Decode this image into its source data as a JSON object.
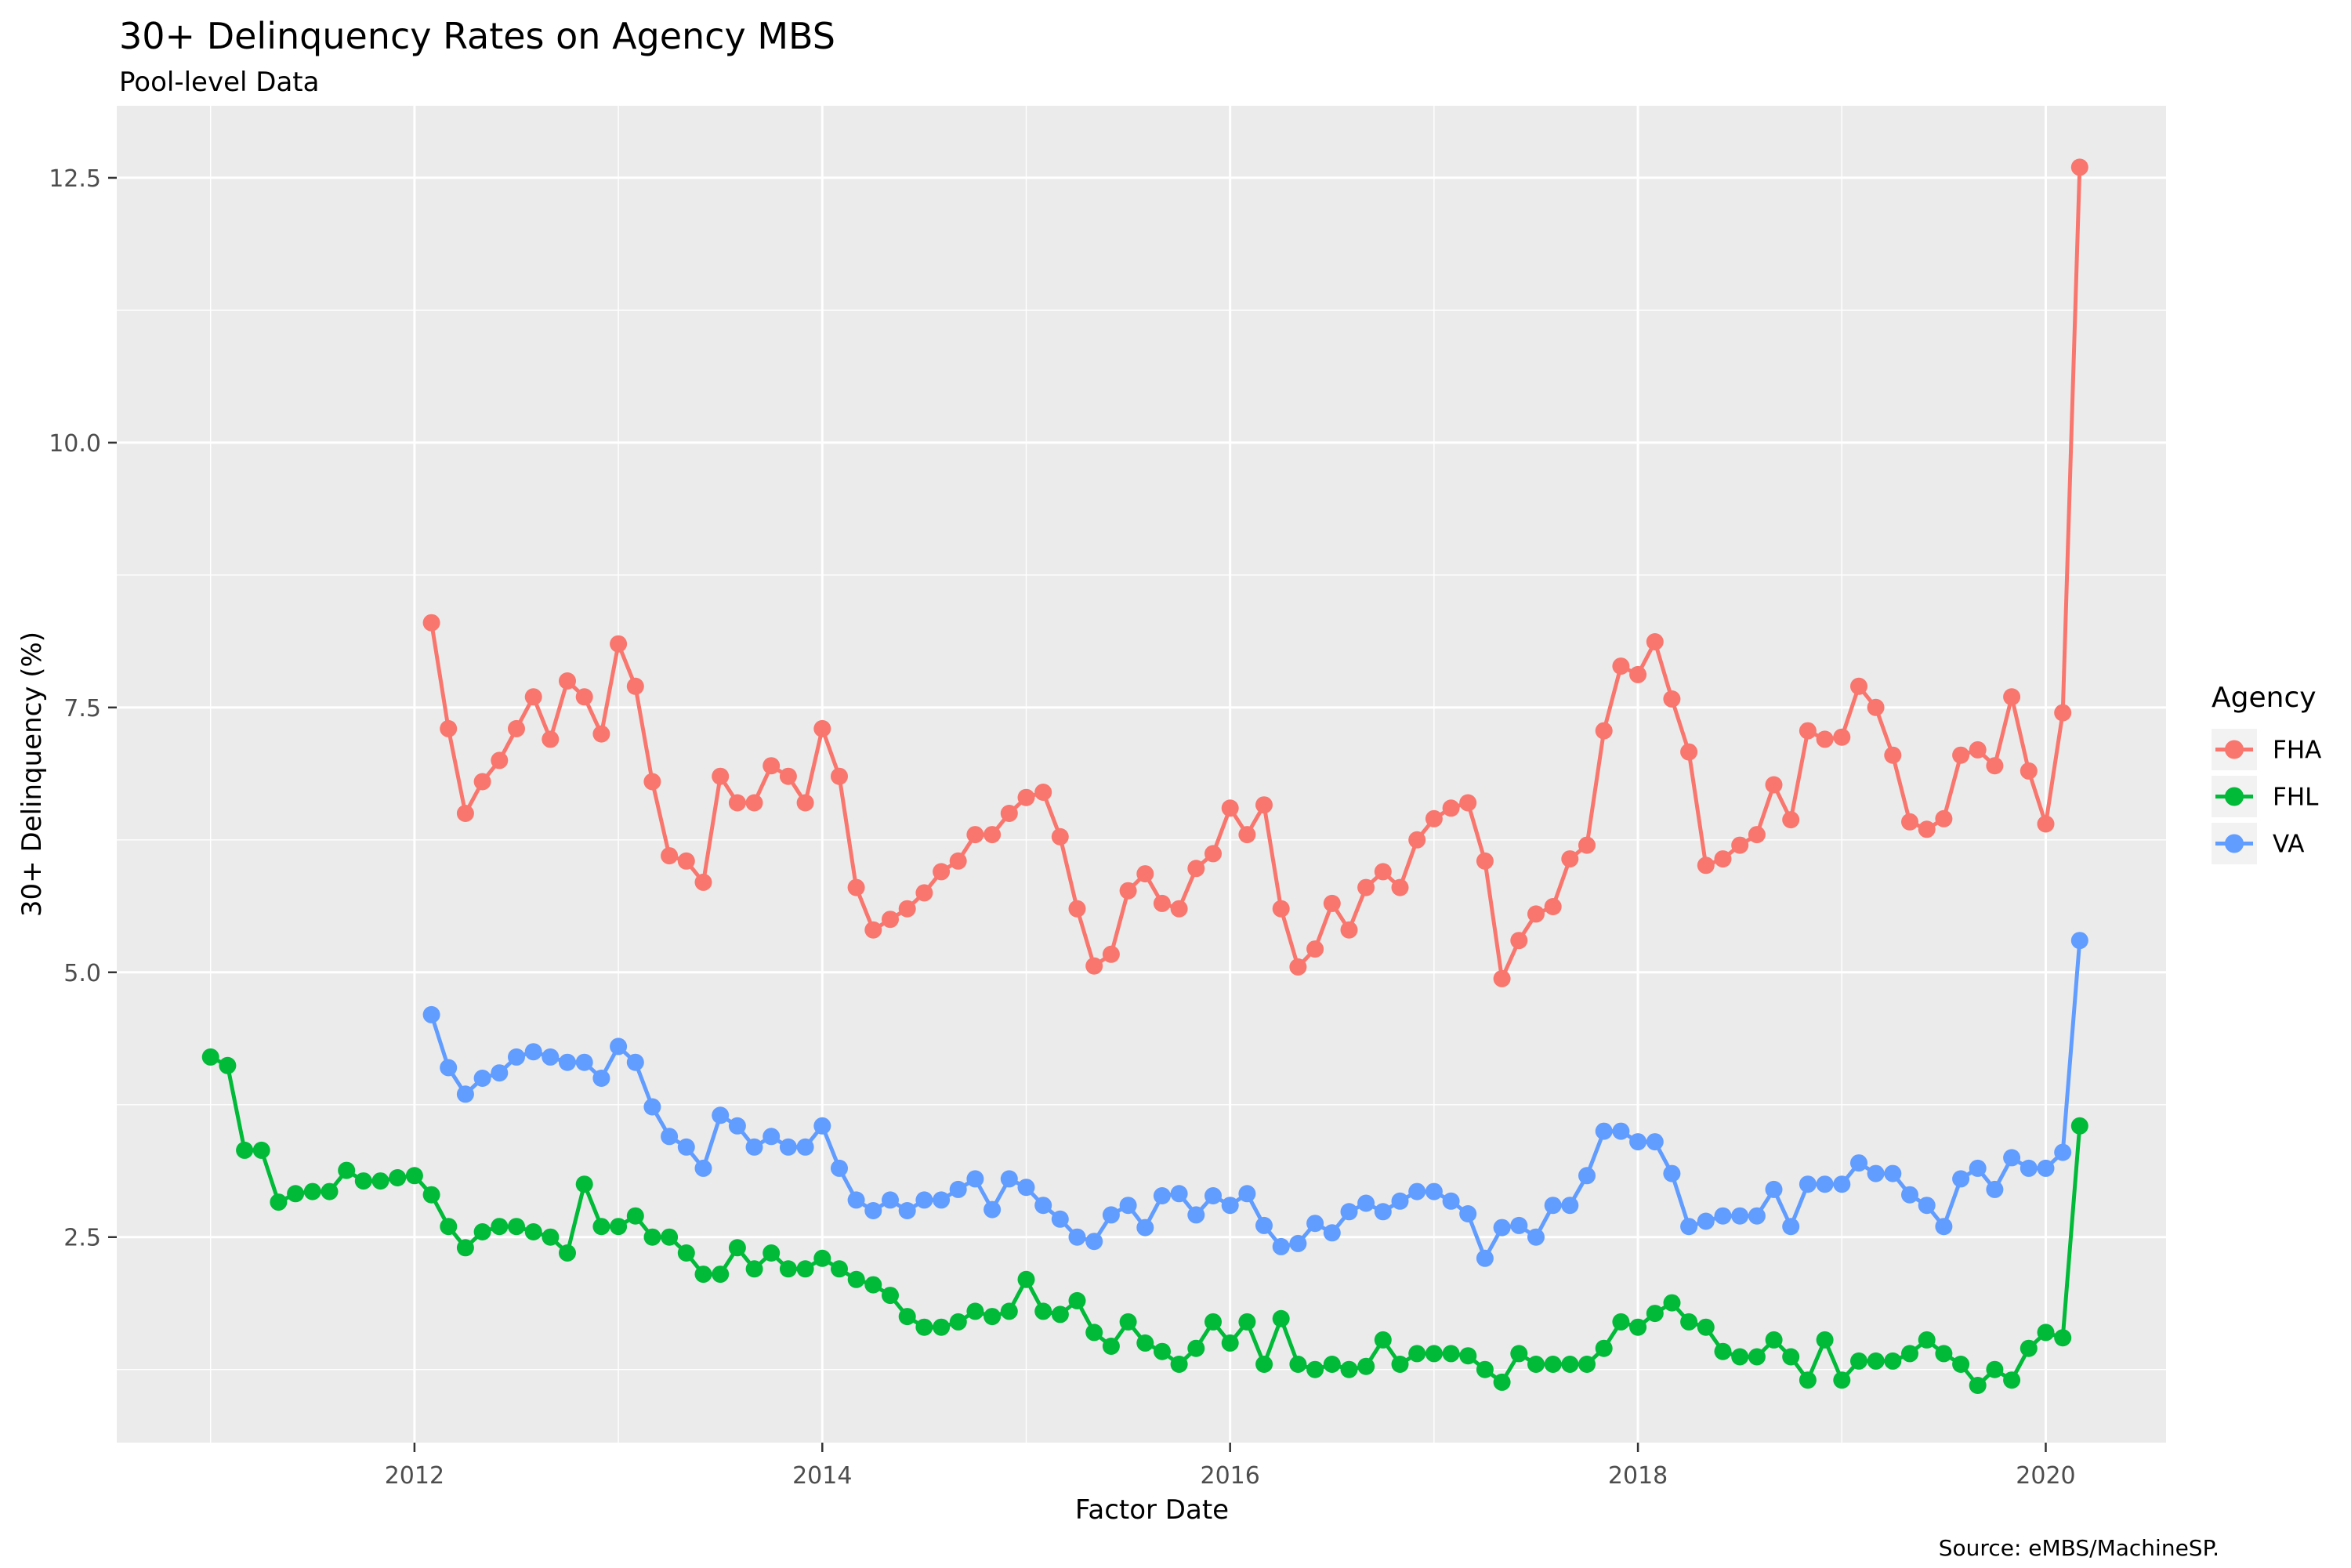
{
  "page": {
    "background": "#FFFFFF",
    "panel_background": "#EBEBEB",
    "gridline_color": "#FFFFFF",
    "tick_mark_color": "#333333",
    "tick_label_color": "#4D4D4D",
    "legend_key_background": "#F2F2F2"
  },
  "chart_data": {
    "type": "line",
    "title": "30+ Delinquency Rates on Agency MBS",
    "subtitle": "Pool-level Data",
    "xlabel": "Factor Date",
    "ylabel": "30+ Delinquency (%)",
    "caption": "Source: eMBS/MachineSP.",
    "legend_title": "Agency",
    "legend_position": "right",
    "grid": true,
    "x_unit": "year",
    "points_per_year": 12,
    "x_major_ticks": [
      2012,
      2014,
      2016,
      2018,
      2020
    ],
    "x_minor_gridlines": [
      2011,
      2013,
      2015,
      2017,
      2019
    ],
    "y_major_ticks": [
      2.5,
      5.0,
      7.5,
      10.0,
      12.5
    ],
    "y_minor_gridlines": [
      1.25,
      3.75,
      6.25,
      8.75,
      11.25
    ],
    "x_tick_labels": [
      "2012",
      "2014",
      "2016",
      "2018",
      "2020"
    ],
    "y_tick_labels": [
      "2.5",
      "5.0",
      "7.5",
      "10.0",
      "12.5"
    ],
    "xlim": [
      2010.54,
      2020.59
    ],
    "ylim": [
      0.56,
      13.18
    ],
    "series": [
      {
        "name": "FHA",
        "color": "#F8766D",
        "start_label": "Feb 2012",
        "start_year": 2012.0833,
        "values": [
          8.3,
          7.3,
          6.5,
          6.8,
          7.0,
          7.3,
          7.6,
          7.2,
          7.75,
          7.6,
          7.25,
          8.1,
          7.7,
          6.8,
          6.1,
          6.05,
          5.85,
          6.85,
          6.6,
          6.6,
          6.95,
          6.85,
          6.6,
          7.3,
          6.85,
          5.8,
          5.4,
          5.5,
          5.6,
          5.75,
          5.95,
          6.05,
          6.3,
          6.3,
          6.5,
          6.65,
          6.7,
          6.28,
          5.6,
          5.06,
          5.17,
          5.77,
          5.93,
          5.65,
          5.6,
          5.98,
          6.12,
          6.55,
          6.3,
          6.58,
          5.6,
          5.05,
          5.22,
          5.65,
          5.4,
          5.8,
          5.95,
          5.8,
          6.25,
          6.45,
          6.55,
          6.6,
          6.05,
          4.94,
          5.3,
          5.55,
          5.62,
          6.07,
          6.2,
          7.28,
          7.89,
          7.81,
          8.12,
          7.58,
          7.08,
          6.01,
          6.07,
          6.2,
          6.3,
          6.77,
          6.44,
          7.28,
          7.2,
          7.22,
          7.7,
          7.5,
          7.05,
          6.42,
          6.35,
          6.45,
          7.05,
          7.1,
          6.95,
          7.6,
          6.9,
          6.4,
          7.45,
          12.6
        ]
      },
      {
        "name": "FHL",
        "color": "#00BA38",
        "start_label": "Jan 2011",
        "start_year": 2011.0,
        "values": [
          4.2,
          4.12,
          3.32,
          3.32,
          2.83,
          2.91,
          2.93,
          2.93,
          3.13,
          3.03,
          3.03,
          3.06,
          3.08,
          2.9,
          2.6,
          2.4,
          2.55,
          2.6,
          2.6,
          2.55,
          2.5,
          2.35,
          3.0,
          2.6,
          2.6,
          2.7,
          2.5,
          2.5,
          2.35,
          2.15,
          2.15,
          2.4,
          2.2,
          2.35,
          2.2,
          2.2,
          2.3,
          2.2,
          2.1,
          2.05,
          1.95,
          1.75,
          1.65,
          1.65,
          1.7,
          1.8,
          1.75,
          1.8,
          2.1,
          1.8,
          1.77,
          1.9,
          1.6,
          1.47,
          1.7,
          1.5,
          1.42,
          1.3,
          1.45,
          1.7,
          1.5,
          1.7,
          1.3,
          1.73,
          1.3,
          1.25,
          1.3,
          1.25,
          1.28,
          1.53,
          1.3,
          1.4,
          1.4,
          1.4,
          1.38,
          1.25,
          1.13,
          1.4,
          1.3,
          1.3,
          1.3,
          1.3,
          1.45,
          1.7,
          1.65,
          1.78,
          1.88,
          1.7,
          1.65,
          1.42,
          1.37,
          1.37,
          1.53,
          1.37,
          1.15,
          1.53,
          1.15,
          1.33,
          1.33,
          1.33,
          1.4,
          1.53,
          1.4,
          1.3,
          1.1,
          1.25,
          1.15,
          1.45,
          1.6,
          1.55,
          3.55
        ]
      },
      {
        "name": "VA",
        "color": "#619CFF",
        "start_label": "Feb 2012",
        "start_year": 2012.0833,
        "values": [
          4.6,
          4.1,
          3.85,
          4.0,
          4.05,
          4.2,
          4.25,
          4.2,
          4.15,
          4.15,
          4.0,
          4.3,
          4.15,
          3.73,
          3.45,
          3.35,
          3.15,
          3.65,
          3.55,
          3.35,
          3.45,
          3.35,
          3.35,
          3.55,
          3.15,
          2.85,
          2.75,
          2.85,
          2.75,
          2.85,
          2.85,
          2.95,
          3.05,
          2.76,
          3.05,
          2.97,
          2.8,
          2.67,
          2.5,
          2.46,
          2.71,
          2.8,
          2.59,
          2.89,
          2.91,
          2.71,
          2.89,
          2.8,
          2.91,
          2.61,
          2.41,
          2.44,
          2.63,
          2.54,
          2.74,
          2.82,
          2.74,
          2.84,
          2.93,
          2.93,
          2.84,
          2.72,
          2.3,
          2.59,
          2.61,
          2.5,
          2.8,
          2.8,
          3.08,
          3.5,
          3.5,
          3.4,
          3.4,
          3.1,
          2.6,
          2.65,
          2.7,
          2.7,
          2.7,
          2.95,
          2.6,
          3.0,
          3.0,
          3.0,
          3.2,
          3.1,
          3.1,
          2.9,
          2.8,
          2.6,
          3.05,
          3.15,
          2.95,
          3.25,
          3.15,
          3.15,
          3.3,
          5.3
        ]
      }
    ]
  }
}
